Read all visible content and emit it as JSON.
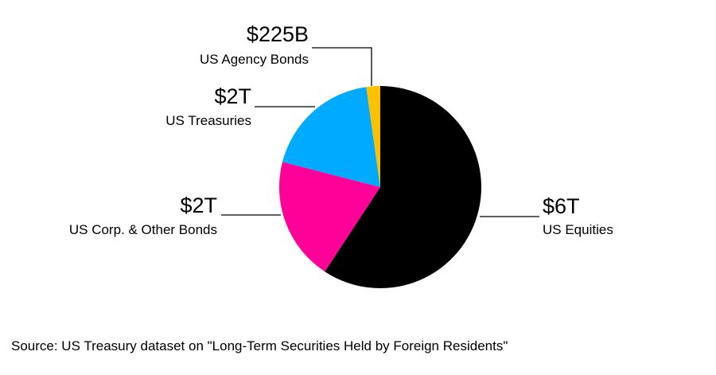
{
  "chart_data": {
    "type": "pie",
    "title": "",
    "slices": [
      {
        "name": "US Equities",
        "value_label": "$6T",
        "value": 6000,
        "color": "#000000"
      },
      {
        "name": "US Corp. & Other Bonds",
        "value_label": "$2T",
        "value": 2000,
        "color": "#ff0099"
      },
      {
        "name": "US Treasuries",
        "value_label": "$2T",
        "value": 1900,
        "color": "#00aaff"
      },
      {
        "name": "US Agency Bonds",
        "value_label": "$225B",
        "value": 225,
        "color": "#ffc000"
      }
    ],
    "units": "USD"
  },
  "source": "Source: US Treasury dataset on \"Long-Term Securities Held by Foreign Residents\""
}
